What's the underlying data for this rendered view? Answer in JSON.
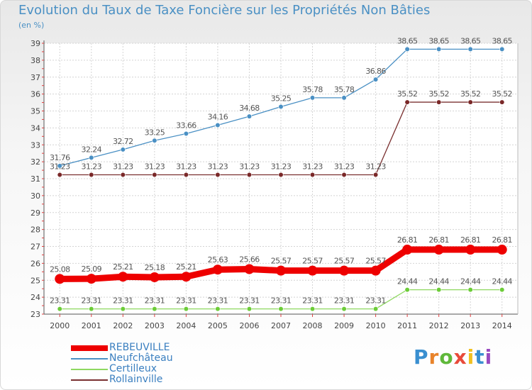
{
  "header": {
    "title": "Evolution du Taux de Taxe Foncière sur les Propriétés Non Bâties",
    "subtitle": "(en %)"
  },
  "logo": {
    "letters": [
      "P",
      "r",
      "o",
      "x",
      "i",
      "t",
      "i"
    ]
  },
  "chart_data": {
    "type": "line",
    "title": "Evolution du Taux de Taxe Foncière sur les Propriétés Non Bâties",
    "ylabel": "(en %)",
    "xlabel": "",
    "ylim": [
      23,
      39
    ],
    "y_ticks": [
      "23",
      "24",
      "25",
      "26",
      "27",
      "28",
      "29",
      "30",
      "31",
      "32",
      "33",
      "34",
      "35",
      "36",
      "37",
      "38",
      "39"
    ],
    "categories": [
      "2000",
      "2001",
      "2002",
      "2003",
      "2004",
      "2005",
      "2006",
      "2007",
      "2008",
      "2009",
      "2010",
      "2011",
      "2012",
      "2013",
      "2014"
    ],
    "legend_position": "bottom-left",
    "series": [
      {
        "name": "REBEUVILLE",
        "color": "#ee0000",
        "style": "thick",
        "values": [
          25.08,
          25.09,
          25.21,
          25.18,
          25.21,
          25.63,
          25.66,
          25.57,
          25.57,
          25.57,
          25.57,
          26.81,
          26.81,
          26.81,
          26.81
        ],
        "labels": [
          "25.08",
          "25.09",
          "25.21",
          "25.18",
          "25.21",
          "25.63",
          "25.66",
          "25.57",
          "25.57",
          "25.57",
          "25.57",
          "26.81",
          "26.81",
          "26.81",
          "26.81"
        ]
      },
      {
        "name": "Neufchâteau",
        "color": "#4a90c4",
        "marker": "#4a90c4",
        "style": "thin",
        "values": [
          31.76,
          32.24,
          32.72,
          33.25,
          33.66,
          34.16,
          34.68,
          35.25,
          35.78,
          35.78,
          36.86,
          38.65,
          38.65,
          38.65,
          38.65
        ],
        "labels": [
          "31.76",
          "32.24",
          "32.72",
          "33.25",
          "33.66",
          "34.16",
          "34.68",
          "35.25",
          "35.78",
          "35.78",
          "36.86",
          "38.65",
          "38.65",
          "38.65",
          "38.65"
        ]
      },
      {
        "name": "Certilleux",
        "color": "#8ed860",
        "marker": "#6ccc38",
        "style": "thin",
        "values": [
          23.31,
          23.31,
          23.31,
          23.31,
          23.31,
          23.31,
          23.31,
          23.31,
          23.31,
          23.31,
          23.31,
          24.44,
          24.44,
          24.44,
          24.44
        ],
        "labels": [
          "23.31",
          "23.31",
          "23.31",
          "23.31",
          "23.31",
          "23.31",
          "23.31",
          "23.31",
          "23.31",
          "23.31",
          "23.31",
          "24.44",
          "24.44",
          "24.44",
          "24.44"
        ]
      },
      {
        "name": "Rollainville",
        "color": "#7a3030",
        "marker": "#7a2828",
        "style": "thin",
        "values": [
          31.23,
          31.23,
          31.23,
          31.23,
          31.23,
          31.23,
          31.23,
          31.23,
          31.23,
          31.23,
          31.23,
          35.52,
          35.52,
          35.52,
          35.52
        ],
        "labels": [
          "31.23",
          "31.23",
          "31.23",
          "31.23",
          "31.23",
          "31.23",
          "31.23",
          "31.23",
          "31.23",
          "31.23",
          "31.23",
          "35.52",
          "35.52",
          "35.52",
          "35.52"
        ]
      }
    ]
  }
}
